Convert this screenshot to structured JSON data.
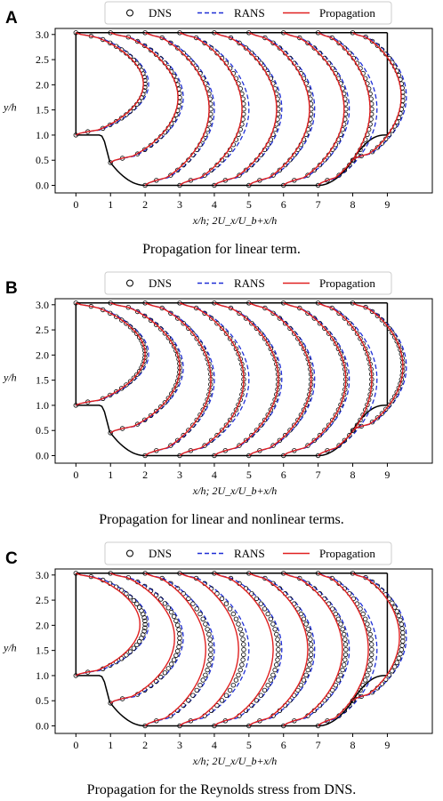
{
  "chart_data": [
    {
      "type": "line",
      "panel_letter": "A",
      "caption": "Propagation for linear term.",
      "xlabel": "x/h;    2U_x/U_b+x/h",
      "ylabel": "y/h",
      "xlim": [
        -0.6,
        10.3
      ],
      "ylim": [
        -0.15,
        3.12
      ],
      "xticks": [
        "0",
        "1",
        "2",
        "3",
        "4",
        "5",
        "6",
        "7",
        "8",
        "9"
      ],
      "yticks": [
        "0.0",
        "0.5",
        "1.0",
        "1.5",
        "2.0",
        "2.5",
        "3.0"
      ],
      "legend": {
        "placement": "top",
        "entries": [
          "DNS",
          "RANS",
          "Propagation"
        ]
      },
      "stations": [
        0,
        1,
        2,
        3,
        4,
        5,
        6,
        7,
        8
      ],
      "series": [
        {
          "name": "DNS",
          "style": "circle-markers",
          "color": "#000000",
          "max_velocity_shift": [
            2.0,
            2.0,
            1.9,
            1.85,
            1.85,
            1.8,
            1.8,
            1.55,
            1.45
          ]
        },
        {
          "name": "RANS",
          "style": "dashed",
          "color": "#1f2fd6",
          "max_velocity_shift": [
            2.1,
            2.1,
            2.0,
            2.0,
            1.95,
            1.9,
            1.9,
            1.7,
            1.55
          ]
        },
        {
          "name": "Propagation",
          "style": "solid",
          "color": "#e02020",
          "max_velocity_shift": [
            1.95,
            1.95,
            1.85,
            1.8,
            1.8,
            1.75,
            1.75,
            1.5,
            1.4
          ]
        }
      ]
    },
    {
      "type": "line",
      "panel_letter": "B",
      "caption": "Propagation for linear and nonlinear terms.",
      "xlabel": "x/h;    2U_x/U_b+x/h",
      "ylabel": "y/h",
      "xlim": [
        -0.6,
        10.3
      ],
      "ylim": [
        -0.15,
        3.12
      ],
      "xticks": [
        "0",
        "1",
        "2",
        "3",
        "4",
        "5",
        "6",
        "7",
        "8",
        "9"
      ],
      "yticks": [
        "0.0",
        "0.5",
        "1.0",
        "1.5",
        "2.0",
        "2.5",
        "3.0"
      ],
      "legend": {
        "placement": "top",
        "entries": [
          "DNS",
          "RANS",
          "Propagation"
        ]
      },
      "stations": [
        0,
        1,
        2,
        3,
        4,
        5,
        6,
        7,
        8
      ],
      "series": [
        {
          "name": "DNS",
          "style": "circle-markers",
          "color": "#000000",
          "max_velocity_shift": [
            2.0,
            2.0,
            1.9,
            1.85,
            1.85,
            1.8,
            1.8,
            1.55,
            1.45
          ]
        },
        {
          "name": "RANS",
          "style": "dashed",
          "color": "#1f2fd6",
          "max_velocity_shift": [
            2.1,
            2.1,
            2.0,
            2.0,
            1.95,
            1.9,
            1.9,
            1.7,
            1.55
          ]
        },
        {
          "name": "Propagation",
          "style": "solid",
          "color": "#e02020",
          "max_velocity_shift": [
            2.0,
            2.0,
            1.9,
            1.85,
            1.85,
            1.8,
            1.8,
            1.55,
            1.45
          ]
        }
      ]
    },
    {
      "type": "line",
      "panel_letter": "C",
      "caption": "Propagation for the Reynolds stress from DNS.",
      "xlabel": "x/h;    2U_x/U_b+x/h",
      "ylabel": "y/h",
      "xlim": [
        -0.6,
        10.3
      ],
      "ylim": [
        -0.15,
        3.12
      ],
      "xticks": [
        "0",
        "1",
        "2",
        "3",
        "4",
        "5",
        "6",
        "7",
        "8",
        "9"
      ],
      "yticks": [
        "0.0",
        "0.5",
        "1.0",
        "1.5",
        "2.0",
        "2.5",
        "3.0"
      ],
      "legend": {
        "placement": "top",
        "entries": [
          "DNS",
          "RANS",
          "Propagation"
        ]
      },
      "stations": [
        0,
        1,
        2,
        3,
        4,
        5,
        6,
        7,
        8
      ],
      "series": [
        {
          "name": "DNS",
          "style": "circle-markers",
          "color": "#000000",
          "max_velocity_shift": [
            2.0,
            2.0,
            1.9,
            1.85,
            1.85,
            1.8,
            1.8,
            1.55,
            1.45
          ]
        },
        {
          "name": "RANS",
          "style": "dashed",
          "color": "#1f2fd6",
          "max_velocity_shift": [
            2.1,
            2.1,
            2.0,
            2.0,
            1.95,
            1.9,
            1.9,
            1.7,
            1.55
          ]
        },
        {
          "name": "Propagation",
          "style": "solid",
          "color": "#e02020",
          "max_velocity_shift": [
            1.85,
            1.85,
            1.75,
            1.7,
            1.7,
            1.7,
            1.7,
            1.45,
            1.35
          ]
        }
      ]
    }
  ]
}
